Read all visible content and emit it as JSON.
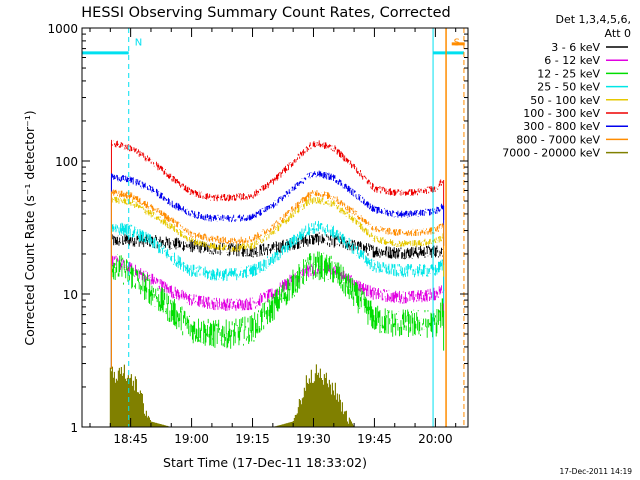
{
  "chart_data": {
    "type": "line",
    "title": "HESSI Observing Summary Count Rates, Corrected",
    "xlabel": "Start Time (17-Dec-11 18:33:02)",
    "ylabel": "Corrected Count Rate (s⁻¹ detector⁻¹)",
    "xlim_minutes": [
      0,
      95
    ],
    "ylim": [
      1,
      1000
    ],
    "yscale": "log",
    "grid": false,
    "legend_position": "right, outside plot",
    "x_ticks": [
      {
        "minute": 11.97,
        "label": "18:45"
      },
      {
        "minute": 26.97,
        "label": "19:00"
      },
      {
        "minute": 41.97,
        "label": "19:15"
      },
      {
        "minute": 56.97,
        "label": "19:30"
      },
      {
        "minute": 71.97,
        "label": "19:45"
      },
      {
        "minute": 86.97,
        "label": "20:00"
      }
    ],
    "y_ticks": [
      {
        "value": 1,
        "label": "1"
      },
      {
        "value": 10,
        "label": "10"
      },
      {
        "value": 100,
        "label": "100"
      },
      {
        "value": 1000,
        "label": "1000"
      }
    ],
    "legend_header": [
      "Det 1,3,4,5,6,",
      "Att 0"
    ],
    "date_stamp": "17-Dec-2011 14:19",
    "markers": [
      {
        "label": "N",
        "minute": 11.5,
        "color": "#00e0f0"
      },
      {
        "label": "S",
        "minute": 90.0,
        "color": "#ff8c00"
      }
    ],
    "segments": {
      "night_minutes": [
        0,
        11.5
      ],
      "saa_minutes": [
        86.4,
        95
      ],
      "data_start_minute": 7.0,
      "data_end_minute": 89.0
    },
    "x": [
      7,
      12,
      17,
      22,
      27,
      32,
      37,
      42,
      47,
      52,
      56,
      58,
      62,
      67,
      72,
      77,
      82,
      87,
      89
    ],
    "series": [
      {
        "name": "3 - 6 keV",
        "color": "#000000",
        "values": [
          25,
          25.5,
          25,
          24,
          23,
          22,
          21.5,
          21,
          22,
          24,
          25.5,
          26,
          25,
          23,
          21,
          20.5,
          20.5,
          21,
          21
        ]
      },
      {
        "name": "6 - 12 keV",
        "color": "#e100e1",
        "values": [
          18,
          15.5,
          13,
          10.5,
          9,
          8.5,
          8.3,
          8.5,
          10,
          13,
          15,
          15.5,
          15,
          12,
          10,
          9.5,
          9.5,
          10,
          11
        ]
      },
      {
        "name": "12 - 25 keV",
        "color": "#00dd00",
        "values": [
          17,
          14,
          10.5,
          7.5,
          5.5,
          5,
          5,
          5.5,
          8,
          12,
          16,
          16.5,
          15,
          10,
          6.5,
          6,
          6,
          6,
          7.5
        ]
      },
      {
        "name": "25 - 50 keV",
        "color": "#00e6e6",
        "values": [
          32,
          30,
          25,
          19,
          15,
          14,
          14,
          15,
          18,
          25,
          31,
          32,
          29,
          22,
          16,
          15,
          15,
          15,
          17
        ]
      },
      {
        "name": "50 - 100 keV",
        "color": "#e6c800",
        "values": [
          52,
          49,
          40,
          32,
          25,
          23,
          22,
          23,
          29,
          40,
          50,
          51,
          47,
          36,
          26,
          24,
          24,
          25,
          27
        ]
      },
      {
        "name": "100 - 300 keV",
        "color": "#ee0000",
        "values": [
          138,
          125,
          100,
          75,
          58,
          53,
          53,
          55,
          70,
          98,
          130,
          135,
          125,
          90,
          62,
          58,
          58,
          62,
          72
        ]
      },
      {
        "name": "300 - 800 keV",
        "color": "#0000ee",
        "values": [
          76,
          72,
          62,
          48,
          40,
          37,
          37,
          38,
          46,
          62,
          78,
          80,
          75,
          57,
          43,
          40,
          40,
          42,
          46
        ]
      },
      {
        "name": "800 - 7000 keV",
        "color": "#ff8c00",
        "values": [
          58,
          55,
          45,
          36,
          28,
          26,
          25,
          26,
          32,
          44,
          56,
          58,
          53,
          41,
          31,
          29,
          29,
          30,
          33
        ]
      },
      {
        "name": "7000 - 20000 keV",
        "color": "#808000",
        "values": [
          2.6,
          2.6,
          1.1,
          1,
          1,
          1,
          1,
          1,
          1,
          1.1,
          2.6,
          2.6,
          2.0,
          1,
          1,
          1,
          1,
          1,
          1
        ]
      }
    ]
  }
}
